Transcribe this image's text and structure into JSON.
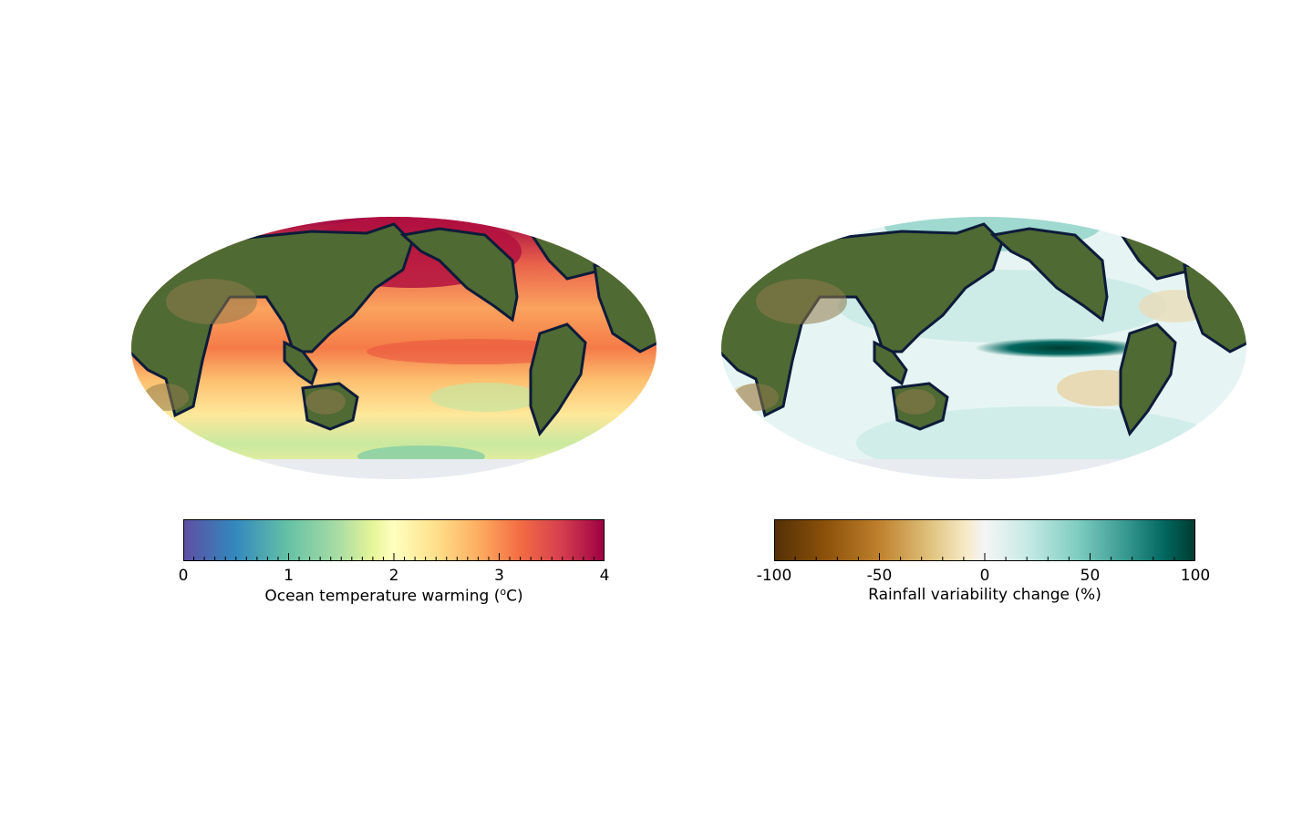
{
  "left_panel": {
    "colorbar": {
      "ticks": [
        "0",
        "1",
        "2",
        "3",
        "4"
      ],
      "range": [
        0,
        4
      ],
      "minor_step": 0.1,
      "label_main": "Ocean temperature warming (",
      "label_unit_super": "o",
      "label_unit_tail": "C)",
      "colormap": [
        "#5e4fa2",
        "#3288bd",
        "#66c2a5",
        "#abdda4",
        "#e6f598",
        "#ffffbf",
        "#fee08b",
        "#fdae61",
        "#f46d43",
        "#d53e4f",
        "#9e0142"
      ]
    }
  },
  "right_panel": {
    "colorbar": {
      "ticks": [
        "-100",
        "-50",
        "0",
        "50",
        "100"
      ],
      "range": [
        -100,
        100
      ],
      "minor_step": 10,
      "label": "Rainfall variability change (%)",
      "colormap": [
        "#543005",
        "#8c510a",
        "#bf812d",
        "#dfc27d",
        "#f6e8c3",
        "#f5f5f5",
        "#c7eae5",
        "#80cdc1",
        "#35978f",
        "#01665e",
        "#003c30"
      ]
    }
  },
  "map": {
    "projection": "Mollweide, Pacific-centred",
    "land_color": "#4f6a33",
    "coast_color": "#0d1b3a"
  }
}
